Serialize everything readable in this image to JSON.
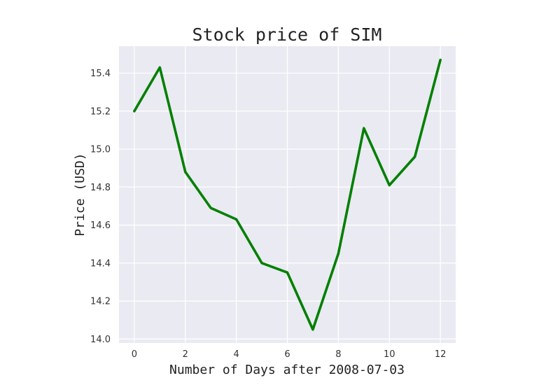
{
  "chart_data": {
    "type": "line",
    "title": "Stock price of SIM",
    "xlabel": "Number of Days after 2008-07-03",
    "ylabel": "Price (USD)",
    "x": [
      0,
      1,
      2,
      3,
      4,
      5,
      6,
      7,
      8,
      9,
      10,
      11,
      12
    ],
    "series": [
      {
        "values": [
          15.2,
          15.43,
          14.88,
          14.69,
          14.63,
          14.4,
          14.35,
          14.05,
          14.45,
          15.11,
          14.81,
          14.96,
          15.47
        ],
        "color": "#008000"
      }
    ],
    "xticks": [
      "0",
      "2",
      "4",
      "6",
      "8",
      "10",
      "12"
    ],
    "yticks": [
      "14.0",
      "14.2",
      "14.4",
      "14.6",
      "14.8",
      "15.0",
      "15.2",
      "15.4"
    ],
    "xlim": [
      -0.6,
      12.6
    ],
    "ylim": [
      13.979,
      15.542
    ],
    "grid": true,
    "background_color": "#eaeaf2",
    "grid_color": "#ffffff"
  }
}
